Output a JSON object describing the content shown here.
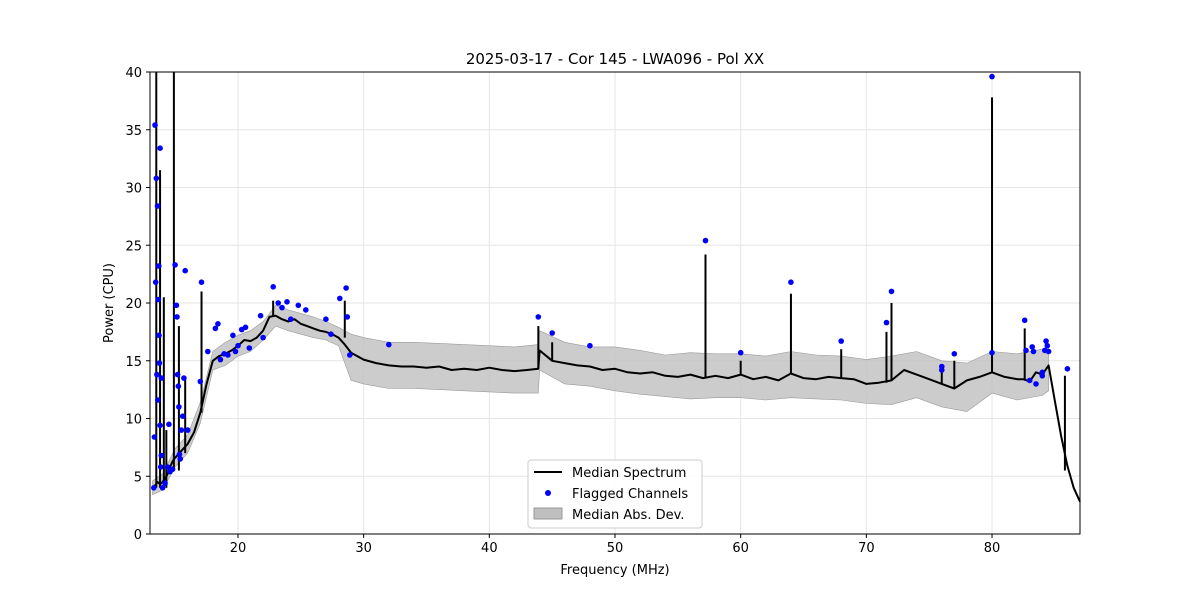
{
  "chart_data": {
    "type": "line",
    "title": "2025-03-17 - Cor 145 - LWA096 - Pol XX",
    "xlabel": "Frequency (MHz)",
    "ylabel": "Power (CPU)",
    "xlim": [
      13,
      87
    ],
    "ylim": [
      0,
      40
    ],
    "xticks": [
      20,
      30,
      40,
      50,
      60,
      70,
      80
    ],
    "yticks": [
      0,
      5,
      10,
      15,
      20,
      25,
      30,
      35,
      40
    ],
    "grid": true,
    "legend_position": "lower-center",
    "colors": {
      "median": "#000000",
      "flagged": "#0000ff",
      "mad": "#bfbfbf",
      "grid": "#e6e6e6"
    },
    "legend": [
      {
        "label": "Median Spectrum",
        "kind": "line"
      },
      {
        "label": "Flagged Channels",
        "kind": "marker"
      },
      {
        "label": "Median Abs. Dev.",
        "kind": "patch"
      }
    ],
    "series": [
      {
        "name": "Median Spectrum",
        "x": [
          13.2,
          13.4,
          13.6,
          13.8,
          14.0,
          14.2,
          14.4,
          14.6,
          14.8,
          15.0,
          15.5,
          16.0,
          16.5,
          17.0,
          17.5,
          18.0,
          18.5,
          19.0,
          19.5,
          20.0,
          20.5,
          21.0,
          21.5,
          22.0,
          22.5,
          23.0,
          23.5,
          24.0,
          24.5,
          25.0,
          25.5,
          26.0,
          26.5,
          27.0,
          27.5,
          28.0,
          28.5,
          29.0,
          30.0,
          31.0,
          32.0,
          33.0,
          34.0,
          35.0,
          36.0,
          37.0,
          38.0,
          39.0,
          40.0,
          41.0,
          42.0,
          43.0,
          43.9,
          44.0,
          45.0,
          46.0,
          47.0,
          48.0,
          49.0,
          50.0,
          51.0,
          52.0,
          53.0,
          54.0,
          55.0,
          56.0,
          57.0,
          58.0,
          59.0,
          60.0,
          61.0,
          62.0,
          63.0,
          64.0,
          65.0,
          66.0,
          67.0,
          68.0,
          69.0,
          70.0,
          71.0,
          72.0,
          73.0,
          74.0,
          75.0,
          76.0,
          77.0,
          78.0,
          79.0,
          80.0,
          81.0,
          82.0,
          82.5,
          83.0,
          83.5,
          84.0,
          84.5,
          85.0,
          85.5,
          86.0,
          86.5,
          87.0
        ],
        "values": [
          4.0,
          4.2,
          4.5,
          4.3,
          4.5,
          4.8,
          5.2,
          5.8,
          6.3,
          6.6,
          7.2,
          7.8,
          8.8,
          10.5,
          13.0,
          15.0,
          15.4,
          15.6,
          15.9,
          16.3,
          16.8,
          16.7,
          17.0,
          17.6,
          18.8,
          18.9,
          18.6,
          18.4,
          18.6,
          18.2,
          18.0,
          17.8,
          17.6,
          17.5,
          17.3,
          17.0,
          16.4,
          15.7,
          15.1,
          14.8,
          14.6,
          14.5,
          14.5,
          14.4,
          14.5,
          14.2,
          14.3,
          14.2,
          14.4,
          14.2,
          14.1,
          14.2,
          14.3,
          15.9,
          15.0,
          14.8,
          14.6,
          14.5,
          14.2,
          14.3,
          14.0,
          13.9,
          14.0,
          13.7,
          13.6,
          13.8,
          13.5,
          13.7,
          13.5,
          13.8,
          13.4,
          13.6,
          13.3,
          13.9,
          13.5,
          13.4,
          13.6,
          13.5,
          13.4,
          13.0,
          13.1,
          13.3,
          14.2,
          13.8,
          13.4,
          13.0,
          12.6,
          13.3,
          13.6,
          14.0,
          13.6,
          13.4,
          13.4,
          13.2,
          14.0,
          13.8,
          14.6,
          11.5,
          8.5,
          5.9,
          4.0,
          2.8
        ]
      }
    ],
    "spikes": [
      {
        "x": 13.5,
        "values": [
          4.0,
          40.0
        ]
      },
      {
        "x": 13.8,
        "values": [
          4.0,
          31.5
        ]
      },
      {
        "x": 14.1,
        "values": [
          4.5,
          20.5
        ]
      },
      {
        "x": 14.3,
        "values": [
          4.0,
          9.0
        ]
      },
      {
        "x": 14.9,
        "values": [
          5.5,
          40.0
        ]
      },
      {
        "x": 15.3,
        "values": [
          5.5,
          18.0
        ]
      },
      {
        "x": 15.8,
        "values": [
          7.0,
          13.5
        ]
      },
      {
        "x": 17.1,
        "values": [
          10.5,
          21.0
        ]
      },
      {
        "x": 22.8,
        "values": [
          18.8,
          20.2
        ]
      },
      {
        "x": 28.5,
        "values": [
          17.0,
          20.2
        ]
      },
      {
        "x": 43.9,
        "values": [
          14.3,
          18.0
        ]
      },
      {
        "x": 45.0,
        "values": [
          15.0,
          16.6
        ]
      },
      {
        "x": 57.2,
        "values": [
          13.5,
          24.2
        ]
      },
      {
        "x": 60.0,
        "values": [
          13.8,
          15.0
        ]
      },
      {
        "x": 64.0,
        "values": [
          13.9,
          20.8
        ]
      },
      {
        "x": 68.0,
        "values": [
          13.5,
          16.0
        ]
      },
      {
        "x": 71.6,
        "values": [
          13.1,
          17.5
        ]
      },
      {
        "x": 72.0,
        "values": [
          13.3,
          20.0
        ]
      },
      {
        "x": 76.0,
        "values": [
          13.0,
          14.0
        ]
      },
      {
        "x": 77.0,
        "values": [
          12.6,
          15.0
        ]
      },
      {
        "x": 80.0,
        "values": [
          14.0,
          37.8
        ]
      },
      {
        "x": 82.6,
        "values": [
          13.4,
          17.8
        ]
      },
      {
        "x": 85.8,
        "values": [
          5.5,
          13.7
        ]
      }
    ],
    "mad": {
      "x": [
        13.2,
        14.0,
        15.0,
        16.0,
        17.0,
        18.0,
        19.0,
        20.0,
        21.0,
        22.0,
        23.0,
        24.0,
        25.0,
        26.0,
        27.0,
        28.0,
        29.0,
        30.0,
        32.0,
        34.0,
        36.0,
        38.0,
        40.0,
        42.0,
        43.9,
        44.0,
        46.0,
        48.0,
        50.0,
        52.0,
        54.0,
        56.0,
        58.0,
        60.0,
        62.0,
        64.0,
        66.0,
        68.0,
        70.0,
        72.0,
        74.0,
        76.0,
        78.0,
        80.0,
        82.0,
        84.0,
        84.5
      ],
      "lower": [
        3.4,
        3.8,
        5.8,
        7.0,
        9.6,
        14.2,
        14.6,
        15.4,
        15.8,
        16.8,
        18.0,
        17.6,
        17.3,
        17.0,
        16.8,
        16.3,
        13.3,
        13.0,
        12.6,
        12.6,
        12.5,
        12.4,
        12.3,
        12.2,
        12.2,
        14.2,
        13.0,
        12.8,
        12.4,
        12.1,
        11.9,
        11.7,
        11.8,
        11.8,
        11.6,
        11.8,
        11.7,
        11.6,
        11.3,
        11.2,
        11.8,
        11.0,
        10.6,
        12.2,
        11.6,
        12.0,
        12.4
      ],
      "upper": [
        4.6,
        5.2,
        7.4,
        8.6,
        11.4,
        15.8,
        16.6,
        17.2,
        17.6,
        18.4,
        19.8,
        19.4,
        19.1,
        18.8,
        18.4,
        17.9,
        17.3,
        17.0,
        16.6,
        16.6,
        16.5,
        16.4,
        16.3,
        16.2,
        16.4,
        17.6,
        16.6,
        16.2,
        16.2,
        15.9,
        15.5,
        15.7,
        15.6,
        15.6,
        15.4,
        15.8,
        15.5,
        15.4,
        15.1,
        15.4,
        15.8,
        15.0,
        14.8,
        15.8,
        15.6,
        16.0,
        16.2
      ]
    },
    "flagged": [
      {
        "x": 13.3,
        "y": 4.0
      },
      {
        "x": 13.35,
        "y": 8.4
      },
      {
        "x": 13.4,
        "y": 35.4
      },
      {
        "x": 13.45,
        "y": 21.8
      },
      {
        "x": 13.5,
        "y": 30.8
      },
      {
        "x": 13.55,
        "y": 13.8
      },
      {
        "x": 13.6,
        "y": 28.4
      },
      {
        "x": 13.62,
        "y": 11.6
      },
      {
        "x": 13.65,
        "y": 20.3
      },
      {
        "x": 13.7,
        "y": 23.2
      },
      {
        "x": 13.72,
        "y": 17.2
      },
      {
        "x": 13.75,
        "y": 14.8
      },
      {
        "x": 13.8,
        "y": 33.4
      },
      {
        "x": 13.8,
        "y": 9.4
      },
      {
        "x": 13.85,
        "y": 5.8
      },
      {
        "x": 13.9,
        "y": 13.5
      },
      {
        "x": 13.9,
        "y": 6.8
      },
      {
        "x": 14.0,
        "y": 4.0
      },
      {
        "x": 14.2,
        "y": 4.4
      },
      {
        "x": 14.4,
        "y": 5.8
      },
      {
        "x": 14.5,
        "y": 9.5
      },
      {
        "x": 14.6,
        "y": 5.4
      },
      {
        "x": 14.8,
        "y": 5.6
      },
      {
        "x": 15.0,
        "y": 23.3
      },
      {
        "x": 15.1,
        "y": 19.8
      },
      {
        "x": 15.15,
        "y": 18.8
      },
      {
        "x": 15.2,
        "y": 13.8
      },
      {
        "x": 15.25,
        "y": 12.8
      },
      {
        "x": 15.3,
        "y": 11.0
      },
      {
        "x": 15.35,
        "y": 6.9
      },
      {
        "x": 15.4,
        "y": 6.5
      },
      {
        "x": 15.5,
        "y": 9.0
      },
      {
        "x": 15.6,
        "y": 10.2
      },
      {
        "x": 15.7,
        "y": 13.5
      },
      {
        "x": 15.8,
        "y": 22.8
      },
      {
        "x": 16.0,
        "y": 9.0
      },
      {
        "x": 17.0,
        "y": 13.2
      },
      {
        "x": 17.1,
        "y": 21.8
      },
      {
        "x": 17.6,
        "y": 15.8
      },
      {
        "x": 18.2,
        "y": 17.8
      },
      {
        "x": 18.4,
        "y": 18.2
      },
      {
        "x": 18.6,
        "y": 15.1
      },
      {
        "x": 18.9,
        "y": 15.6
      },
      {
        "x": 19.2,
        "y": 15.5
      },
      {
        "x": 19.6,
        "y": 17.2
      },
      {
        "x": 19.8,
        "y": 15.8
      },
      {
        "x": 20.0,
        "y": 16.3
      },
      {
        "x": 20.3,
        "y": 17.7
      },
      {
        "x": 20.6,
        "y": 17.9
      },
      {
        "x": 20.9,
        "y": 16.1
      },
      {
        "x": 21.8,
        "y": 18.9
      },
      {
        "x": 22.0,
        "y": 17.0
      },
      {
        "x": 22.8,
        "y": 21.4
      },
      {
        "x": 23.2,
        "y": 20.0
      },
      {
        "x": 23.5,
        "y": 19.6
      },
      {
        "x": 23.9,
        "y": 20.1
      },
      {
        "x": 24.2,
        "y": 18.6
      },
      {
        "x": 24.8,
        "y": 19.8
      },
      {
        "x": 25.4,
        "y": 19.4
      },
      {
        "x": 27.0,
        "y": 18.6
      },
      {
        "x": 27.4,
        "y": 17.3
      },
      {
        "x": 28.1,
        "y": 20.4
      },
      {
        "x": 28.6,
        "y": 21.3
      },
      {
        "x": 28.7,
        "y": 18.8
      },
      {
        "x": 28.9,
        "y": 15.5
      },
      {
        "x": 32.0,
        "y": 16.4
      },
      {
        "x": 43.9,
        "y": 18.8
      },
      {
        "x": 45.0,
        "y": 17.4
      },
      {
        "x": 48.0,
        "y": 16.3
      },
      {
        "x": 57.2,
        "y": 25.4
      },
      {
        "x": 60.0,
        "y": 15.7
      },
      {
        "x": 64.0,
        "y": 21.8
      },
      {
        "x": 68.0,
        "y": 16.7
      },
      {
        "x": 71.6,
        "y": 18.3
      },
      {
        "x": 72.0,
        "y": 21.0
      },
      {
        "x": 76.0,
        "y": 14.5
      },
      {
        "x": 76.0,
        "y": 14.2
      },
      {
        "x": 77.0,
        "y": 15.6
      },
      {
        "x": 80.0,
        "y": 39.6
      },
      {
        "x": 80.0,
        "y": 15.7
      },
      {
        "x": 82.6,
        "y": 18.5
      },
      {
        "x": 82.7,
        "y": 15.9
      },
      {
        "x": 83.0,
        "y": 13.3
      },
      {
        "x": 83.2,
        "y": 16.2
      },
      {
        "x": 83.3,
        "y": 15.8
      },
      {
        "x": 83.5,
        "y": 13.0
      },
      {
        "x": 84.0,
        "y": 14.0
      },
      {
        "x": 84.2,
        "y": 15.9
      },
      {
        "x": 84.3,
        "y": 16.7
      },
      {
        "x": 84.4,
        "y": 16.3
      },
      {
        "x": 84.5,
        "y": 15.8
      },
      {
        "x": 84.0,
        "y": 13.7
      },
      {
        "x": 86.0,
        "y": 14.3
      }
    ]
  }
}
